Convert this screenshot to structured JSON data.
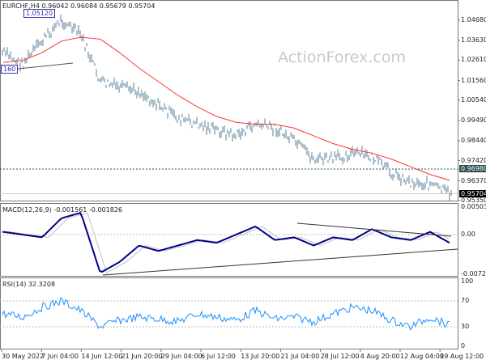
{
  "header": {
    "symbol_line": "EURCHF,H4  0.96042 0.96084 0.95679 0.95704"
  },
  "watermark": "ActionForex.com",
  "tags": {
    "high": "1.05120",
    "low": "160"
  },
  "price_axis": {
    "ticks": [
      "1.04680",
      "1.03630",
      "1.02610",
      "1.01560",
      "1.00540",
      "0.99490",
      "0.98440",
      "0.97420",
      "0.96370",
      "0.95350"
    ],
    "tick_values": [
      1.0468,
      1.0363,
      1.0261,
      1.0156,
      1.0054,
      0.9949,
      0.9844,
      0.9742,
      0.9637,
      0.9535
    ],
    "level_label": "0.96980",
    "current_label": "0.95704"
  },
  "macd": {
    "title": "MACD(12,26,9) -0.001561 -0.001826",
    "ticks": [
      "0.005037",
      "0.00",
      "-0.007251"
    ]
  },
  "rsi": {
    "title": "RSI(14) 32.3208",
    "ticks": [
      "100",
      "70",
      "30",
      "0"
    ]
  },
  "time_axis": [
    "30 May 2022",
    "7 Jun 04:00",
    "14 Jun 12:00",
    "21 Jun 20:00",
    "29 Jun 04:00",
    "6 Jul 12:00",
    "13 Jul 20:00",
    "21 Jul 04:00",
    "28 Jul 12:00",
    "4 Aug 20:00",
    "12 Aug 04:00",
    "19 Aug 12:00"
  ],
  "colors": {
    "price": "#5a7f99",
    "ma": "#ff3333",
    "macd": "#00008b",
    "signal": "#c0c0c0",
    "rsi": "#1e90ff",
    "level": "#2f4f4f"
  },
  "chart_data": {
    "type": "line",
    "close": [
      1.03,
      1.024,
      1.036,
      1.047,
      1.039,
      1.015,
      1.012,
      1.01,
      1.003,
      0.996,
      0.993,
      0.99,
      0.987,
      0.993,
      0.991,
      0.984,
      0.975,
      0.975,
      0.978,
      0.976,
      0.968,
      0.963,
      0.962,
      0.957
    ],
    "ma": [
      1.025,
      1.026,
      1.03,
      1.036,
      1.038,
      1.037,
      1.03,
      1.022,
      1.015,
      1.008,
      1.002,
      0.997,
      0.994,
      0.993,
      0.993,
      0.991,
      0.987,
      0.983,
      0.98,
      0.978,
      0.975,
      0.971,
      0.967,
      0.964
    ],
    "macd": [
      0.0005,
      0.0,
      -0.0005,
      0.003,
      0.004,
      -0.007,
      -0.005,
      -0.002,
      -0.003,
      -0.002,
      -0.001,
      -0.0015,
      0.0,
      0.0015,
      -0.001,
      -0.0005,
      -0.002,
      -0.0005,
      -0.001,
      0.001,
      -0.0005,
      -0.001,
      0.0005,
      -0.0015
    ],
    "rsi": [
      50,
      45,
      60,
      70,
      55,
      30,
      40,
      45,
      42,
      38,
      50,
      45,
      40,
      55,
      42,
      45,
      38,
      50,
      60,
      55,
      40,
      30,
      45,
      32
    ],
    "price_range": [
      0.9535,
      1.0468
    ],
    "macd_range": [
      -0.007251,
      0.005037
    ],
    "rsi_range": [
      0,
      100
    ]
  }
}
